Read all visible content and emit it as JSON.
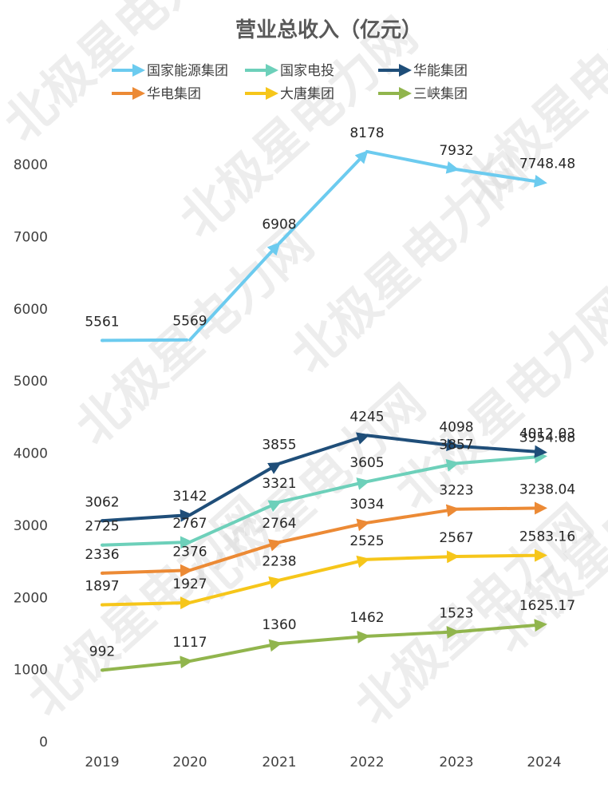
{
  "colors": {
    "国家能源集团": "#6ccbef",
    "国家电投": "#6dd0ba",
    "华能集团": "#1f4e79",
    "华电集团": "#ec8a35",
    "大唐集团": "#f6c61a",
    "三峡集团": "#91b54d",
    "axis_text": "#404040",
    "title": "#595959"
  },
  "watermark_text": "北极星电力网",
  "chart_data": {
    "type": "line",
    "title": "营业总收入（亿元）",
    "xlabel": "",
    "ylabel": "",
    "x": [
      "2019",
      "2020",
      "2021",
      "2022",
      "2023",
      "2024"
    ],
    "ylim": [
      0,
      8000
    ],
    "yticks": [
      "0",
      "1000",
      "2000",
      "3000",
      "4000",
      "5000",
      "6000",
      "7000",
      "8000"
    ],
    "grid": false,
    "legend_position": "top",
    "series": [
      {
        "name": "国家能源集团",
        "values": [
          5561,
          5569,
          6908,
          8178,
          7932,
          7748.48
        ],
        "labels": [
          "5561",
          "5569",
          "6908",
          "8178",
          "7932",
          "7748.48"
        ]
      },
      {
        "name": "国家电投",
        "values": [
          2725,
          2767,
          3321,
          3605,
          3857,
          3954.68
        ],
        "labels": [
          "2725",
          "2767",
          "3321",
          "3605",
          "3857",
          "3954.68"
        ]
      },
      {
        "name": "华能集团",
        "values": [
          3062,
          3142,
          3855,
          4245,
          4098,
          4012.03
        ],
        "labels": [
          "3062",
          "3142",
          "3855",
          "4245",
          "4098",
          "4012.03"
        ]
      },
      {
        "name": "华电集团",
        "values": [
          2336,
          2376,
          2764,
          3034,
          3223,
          3238.04
        ],
        "labels": [
          "2336",
          "2376",
          "2764",
          "3034",
          "3223",
          "3238.04"
        ]
      },
      {
        "name": "大唐集团",
        "values": [
          1897,
          1927,
          2238,
          2525,
          2567,
          2583.16
        ],
        "labels": [
          "1897",
          "1927",
          "2238",
          "2525",
          "2567",
          "2583.16"
        ]
      },
      {
        "name": "三峡集团",
        "values": [
          992,
          1117,
          1360,
          1462,
          1523,
          1625.17
        ],
        "labels": [
          "992",
          "1117",
          "1360",
          "1462",
          "1523",
          "1625.17"
        ]
      }
    ]
  }
}
